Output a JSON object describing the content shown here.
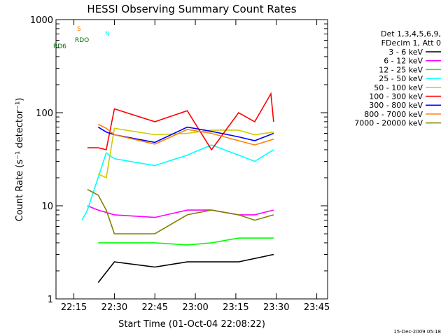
{
  "chart_data": {
    "type": "line",
    "title": "HESSI Observing Summary Count Rates",
    "xlabel": "Start Time (01-Oct-04 22:08:22)",
    "ylabel": "Count Rate (s⁻¹ detector⁻¹)",
    "yscale": "log",
    "ylim": [
      1,
      1000
    ],
    "xlim": [
      "22:08:22",
      "23:49:00"
    ],
    "x_ticks": [
      "22:15",
      "22:30",
      "22:45",
      "23:00",
      "23:15",
      "23:30",
      "23:45"
    ],
    "y_ticks": [
      "1",
      "10",
      "100",
      "1000"
    ],
    "legend_placement": "right",
    "legend_header": [
      "Det 1,3,4,5,6,9,",
      "FDecim 1, Att 0"
    ],
    "footer_date": "15-Dec-2009 05:18",
    "flags": [
      {
        "label": "S",
        "color": "#ff8000"
      },
      {
        "label": "N",
        "color": "#00ffff"
      },
      {
        "label": "RDO",
        "color": "#007000"
      },
      {
        "label": "RD6",
        "color": "#007000"
      }
    ],
    "series": [
      {
        "name": "3 - 6 keV",
        "color": "#000000",
        "x": [
          "22:24",
          "22:30",
          "22:45",
          "22:57",
          "23:06",
          "23:16",
          "23:29"
        ],
        "y": [
          1.5,
          2.5,
          2.2,
          2.5,
          2.5,
          2.5,
          3
        ]
      },
      {
        "name": "6 - 12 keV",
        "color": "#ff00ff",
        "x": [
          "22:20",
          "22:24",
          "22:30",
          "22:45",
          "22:57",
          "23:06",
          "23:16",
          "23:22",
          "23:29"
        ],
        "y": [
          10,
          9,
          8,
          7.5,
          9,
          9,
          8,
          8,
          9
        ]
      },
      {
        "name": "12 - 25 keV",
        "color": "#00ff00",
        "x": [
          "22:24",
          "22:30",
          "22:45",
          "22:57",
          "23:06",
          "23:16",
          "23:29"
        ],
        "y": [
          4,
          4,
          4,
          3.8,
          4,
          4.5,
          4.5
        ]
      },
      {
        "name": "25 - 50 keV",
        "color": "#00ffff",
        "x": [
          "22:18",
          "22:20",
          "22:27",
          "22:30",
          "22:45",
          "22:57",
          "23:06",
          "23:16",
          "23:22",
          "23:29"
        ],
        "y": [
          7,
          9,
          37,
          32,
          27,
          35,
          45,
          35,
          30,
          40
        ]
      },
      {
        "name": "50 - 100 keV",
        "color": "#cccc00",
        "x": [
          "22:24",
          "22:27",
          "22:30",
          "22:45",
          "22:57",
          "23:06",
          "23:16",
          "23:22",
          "23:29"
        ],
        "y": [
          22,
          20,
          68,
          58,
          60,
          65,
          65,
          58,
          62
        ]
      },
      {
        "name": "100 - 300 keV",
        "color": "#ff0000",
        "x": [
          "22:20",
          "22:24",
          "22:27",
          "22:30",
          "22:45",
          "22:57",
          "23:06",
          "23:16",
          "23:22",
          "23:28",
          "23:29"
        ],
        "y": [
          42,
          42,
          40,
          110,
          80,
          105,
          40,
          100,
          80,
          160,
          80
        ]
      },
      {
        "name": "300 - 800 keV",
        "color": "#0000ff",
        "x": [
          "22:24",
          "22:27",
          "22:30",
          "22:45",
          "22:57",
          "23:06",
          "23:16",
          "23:22",
          "23:29"
        ],
        "y": [
          70,
          62,
          58,
          48,
          70,
          63,
          55,
          50,
          60
        ]
      },
      {
        "name": "800 - 7000 keV",
        "color": "#ff8000",
        "x": [
          "22:24",
          "22:27",
          "22:30",
          "22:45",
          "22:57",
          "23:06",
          "23:16",
          "23:22",
          "23:29"
        ],
        "y": [
          75,
          68,
          58,
          46,
          66,
          60,
          50,
          45,
          52
        ]
      },
      {
        "name": "7000 - 20000 keV",
        "color": "#808000",
        "x": [
          "22:20",
          "22:24",
          "22:27",
          "22:30",
          "22:45",
          "22:57",
          "23:06",
          "23:16",
          "23:22",
          "23:29"
        ],
        "y": [
          15,
          13,
          9,
          5,
          5,
          8,
          9,
          8,
          7,
          8
        ]
      }
    ]
  }
}
